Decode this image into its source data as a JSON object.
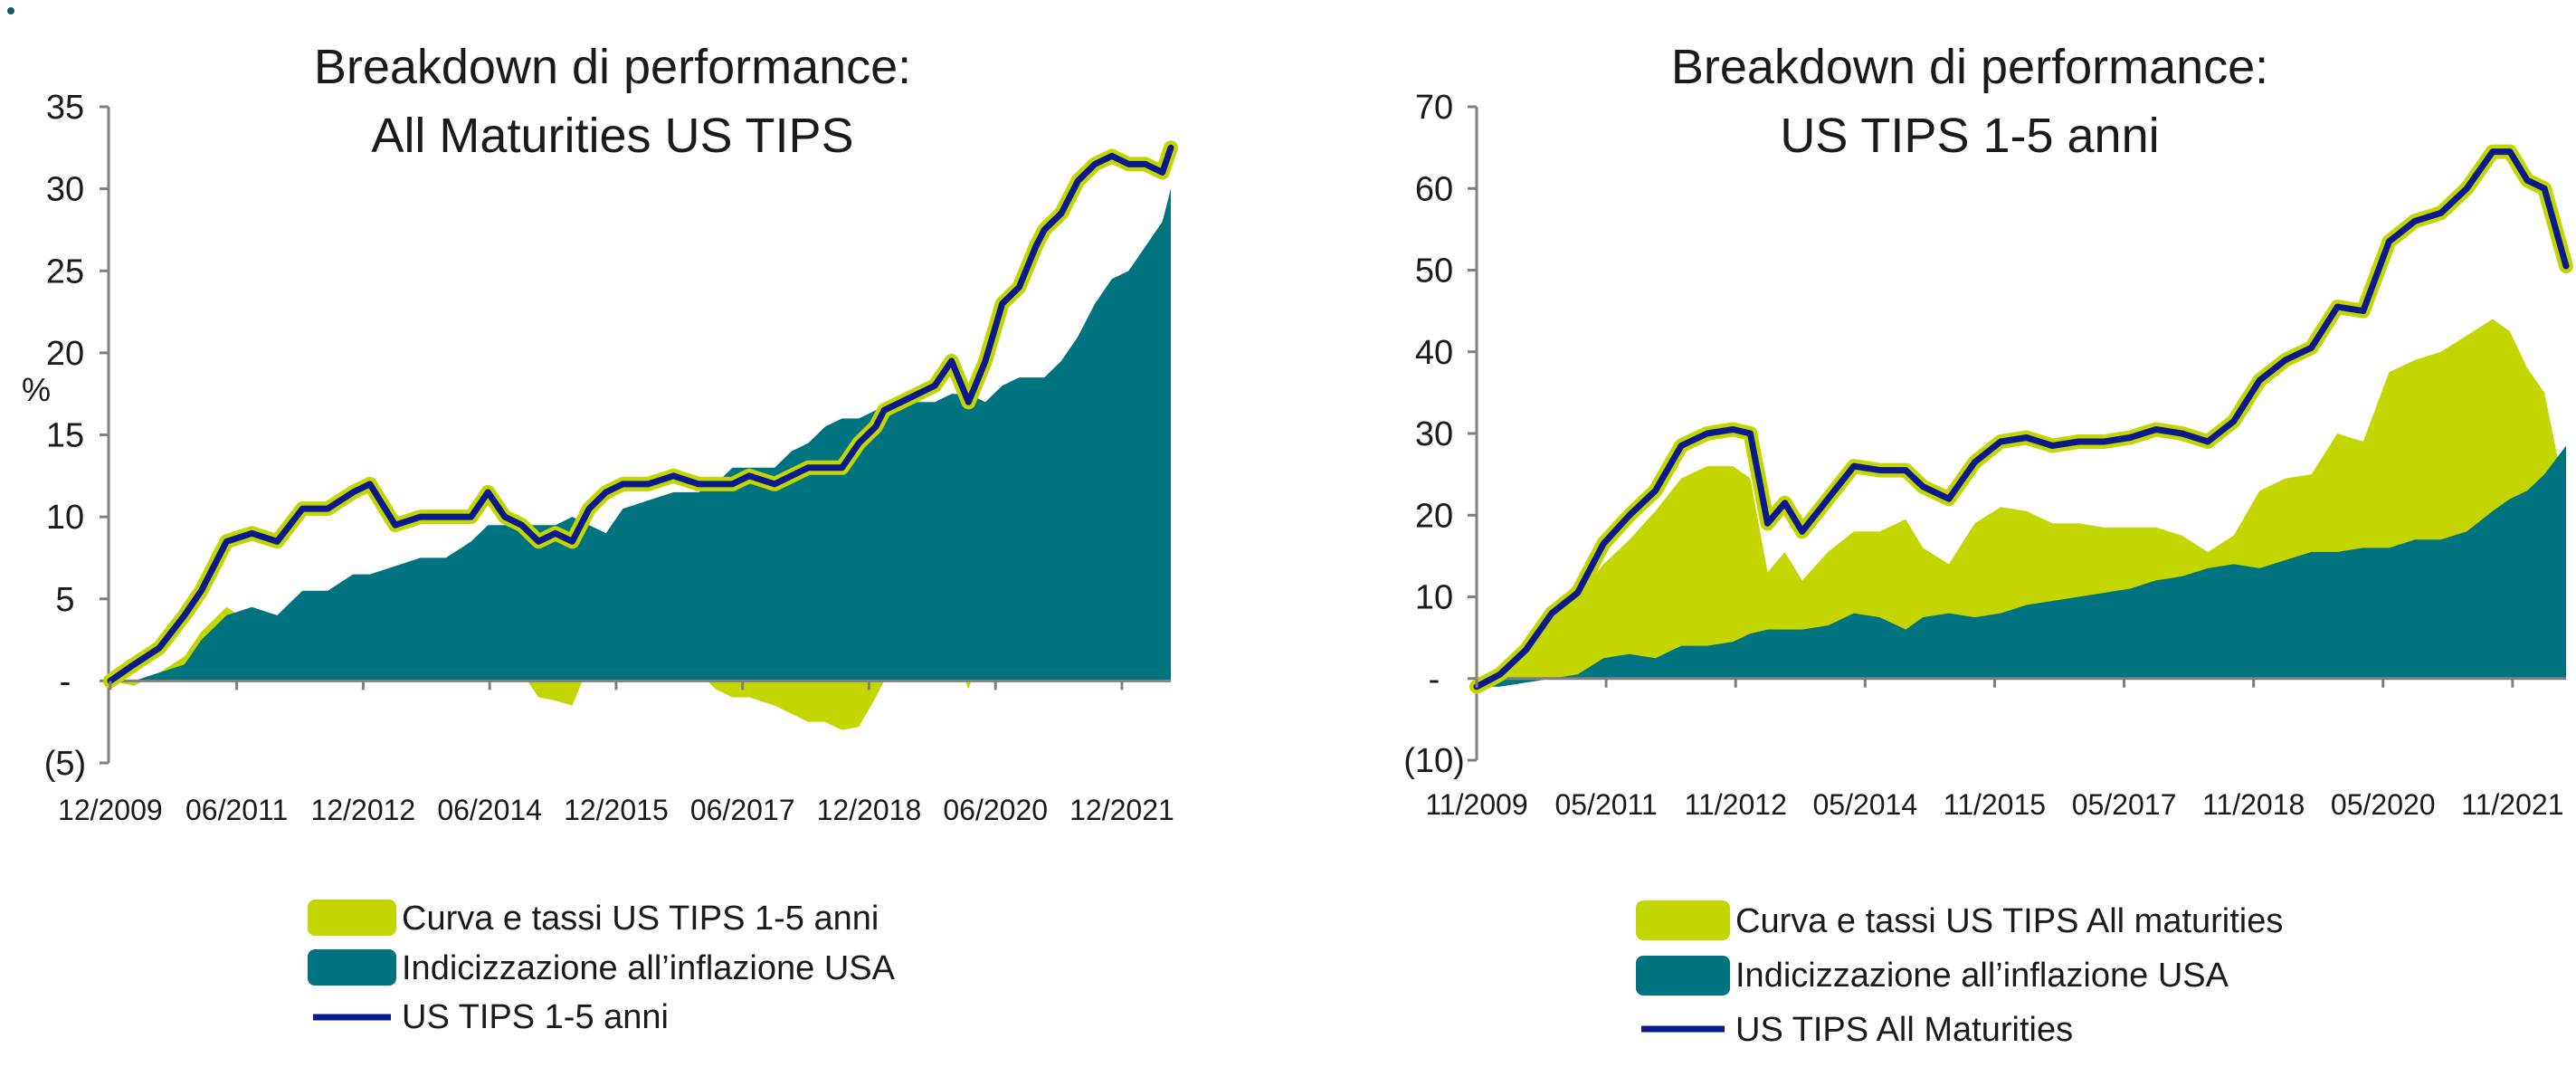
{
  "colors": {
    "yellow_green": "#c4d600",
    "teal": "#007380",
    "navy": "#0a1a8c",
    "axis": "#7f7f7f"
  },
  "chart_data": [
    {
      "type": "area",
      "title": "Breakdown di performance:",
      "subtitle": "All Maturities US TIPS",
      "ylabel": "%",
      "ylim": [
        -5,
        35
      ],
      "yticks": [
        {
          "value": 35,
          "label": "35"
        },
        {
          "value": 30,
          "label": "30"
        },
        {
          "value": 25,
          "label": "25"
        },
        {
          "value": 20,
          "label": "20"
        },
        {
          "value": 15,
          "label": "15"
        },
        {
          "value": 10,
          "label": "10"
        },
        {
          "value": 5,
          "label": "5"
        },
        {
          "value": 0,
          "label": "-"
        },
        {
          "value": -5,
          "label": "(5)"
        }
      ],
      "xrange": [
        2009.9,
        2022.5
      ],
      "xticks": [
        {
          "value": 2009.92,
          "label": "12/2009"
        },
        {
          "value": 2011.42,
          "label": "06/2011"
        },
        {
          "value": 2012.92,
          "label": "12/2012"
        },
        {
          "value": 2014.42,
          "label": "06/2014"
        },
        {
          "value": 2015.92,
          "label": "12/2015"
        },
        {
          "value": 2017.42,
          "label": "06/2017"
        },
        {
          "value": 2018.92,
          "label": "12/2018"
        },
        {
          "value": 2020.42,
          "label": "06/2020"
        },
        {
          "value": 2021.92,
          "label": "12/2021"
        }
      ],
      "legend_position": "bottom",
      "series": [
        {
          "name": "Curva e tassi US TIPS 1-5 anni",
          "kind": "area",
          "color": "#c4d600",
          "x": [
            2009.92,
            2010.2,
            2010.5,
            2010.8,
            2011.0,
            2011.3,
            2011.6,
            2011.9,
            2012.2,
            2012.5,
            2012.8,
            2013.0,
            2013.3,
            2013.6,
            2013.9,
            2014.2,
            2014.4,
            2014.6,
            2014.8,
            2015.0,
            2015.2,
            2015.4,
            2015.6,
            2015.8,
            2016.0,
            2016.3,
            2016.6,
            2016.9,
            2017.1,
            2017.3,
            2017.5,
            2017.8,
            2018.0,
            2018.2,
            2018.4,
            2018.6,
            2018.8,
            2019.0,
            2019.1,
            2019.3,
            2019.5,
            2019.7,
            2019.9,
            2020.1,
            2020.3,
            2020.5,
            2020.7,
            2020.9,
            2021.0,
            2021.2,
            2021.4,
            2021.6,
            2021.8,
            2022.0,
            2022.2,
            2022.4,
            2022.5
          ],
          "values": [
            0,
            -0.3,
            0.5,
            1.5,
            3.0,
            4.5,
            3.5,
            4.0,
            5.0,
            5.0,
            4.5,
            4.5,
            1.0,
            2.5,
            1.5,
            1.5,
            2.0,
            1.5,
            0.5,
            -1.0,
            -1.2,
            -1.5,
            1.0,
            2.0,
            1.5,
            1.0,
            1.0,
            0.5,
            -0.5,
            -1.0,
            -1.0,
            -1.5,
            -2.0,
            -2.5,
            -2.5,
            -3.0,
            -2.8,
            -1.0,
            0.0,
            0.0,
            0.5,
            1.0,
            2.0,
            -0.5,
            2.5,
            6.0,
            6.0,
            8.0,
            9.0,
            9.0,
            9.5,
            9.0,
            8.0,
            6.5,
            5.0,
            3.0,
            3.0
          ]
        },
        {
          "name": "Indicizzazione all’inflazione USA",
          "kind": "area",
          "color": "#007380",
          "x": [
            2009.92,
            2010.2,
            2010.5,
            2010.8,
            2011.0,
            2011.3,
            2011.6,
            2011.9,
            2012.2,
            2012.5,
            2012.8,
            2013.0,
            2013.3,
            2013.6,
            2013.9,
            2014.2,
            2014.4,
            2014.6,
            2014.8,
            2015.0,
            2015.2,
            2015.4,
            2015.6,
            2015.8,
            2016.0,
            2016.3,
            2016.6,
            2016.9,
            2017.1,
            2017.3,
            2017.5,
            2017.8,
            2018.0,
            2018.2,
            2018.4,
            2018.6,
            2018.8,
            2019.0,
            2019.1,
            2019.3,
            2019.5,
            2019.7,
            2019.9,
            2020.1,
            2020.3,
            2020.5,
            2020.7,
            2020.9,
            2021.0,
            2021.2,
            2021.4,
            2021.6,
            2021.8,
            2022.0,
            2022.2,
            2022.4,
            2022.5
          ],
          "values": [
            0,
            0,
            0.5,
            1.0,
            2.5,
            4.0,
            4.5,
            4.0,
            5.5,
            5.5,
            6.5,
            6.5,
            7.0,
            7.5,
            7.5,
            8.5,
            9.5,
            9.5,
            9.5,
            9.5,
            9.5,
            10.0,
            9.5,
            9.0,
            10.5,
            11.0,
            11.5,
            11.5,
            12.0,
            13.0,
            13.0,
            13.0,
            14.0,
            14.5,
            15.5,
            16.0,
            16.0,
            16.5,
            17.0,
            17.0,
            17.0,
            17.0,
            17.5,
            17.5,
            17.0,
            18.0,
            18.5,
            18.5,
            18.5,
            19.5,
            21.0,
            23.0,
            24.5,
            25.0,
            26.5,
            28.0,
            30.0
          ]
        },
        {
          "name": "US TIPS 1-5 anni",
          "kind": "line",
          "color": "#0a1a8c",
          "x": [
            2009.92,
            2010.2,
            2010.5,
            2010.8,
            2011.0,
            2011.3,
            2011.6,
            2011.9,
            2012.2,
            2012.5,
            2012.8,
            2013.0,
            2013.3,
            2013.6,
            2013.9,
            2014.2,
            2014.4,
            2014.6,
            2014.8,
            2015.0,
            2015.2,
            2015.4,
            2015.6,
            2015.8,
            2016.0,
            2016.3,
            2016.6,
            2016.9,
            2017.1,
            2017.3,
            2017.5,
            2017.8,
            2018.0,
            2018.2,
            2018.4,
            2018.6,
            2018.8,
            2019.0,
            2019.1,
            2019.3,
            2019.5,
            2019.7,
            2019.9,
            2020.1,
            2020.3,
            2020.5,
            2020.7,
            2020.9,
            2021.0,
            2021.2,
            2021.4,
            2021.6,
            2021.8,
            2022.0,
            2022.2,
            2022.4,
            2022.5
          ],
          "values": [
            0,
            1.0,
            2.0,
            4.0,
            5.5,
            8.5,
            9.0,
            8.5,
            10.5,
            10.5,
            11.5,
            12.0,
            9.5,
            10.0,
            10.0,
            10.0,
            11.5,
            10.0,
            9.5,
            8.5,
            9.0,
            8.5,
            10.5,
            11.5,
            12.0,
            12.0,
            12.5,
            12.0,
            12.0,
            12.0,
            12.5,
            12.0,
            12.5,
            13.0,
            13.0,
            13.0,
            14.5,
            15.5,
            16.5,
            17.0,
            17.5,
            18.0,
            19.5,
            17.0,
            19.5,
            23.0,
            24.0,
            26.5,
            27.5,
            28.5,
            30.5,
            31.5,
            32.0,
            31.5,
            31.5,
            31.0,
            32.5
          ]
        }
      ]
    },
    {
      "type": "area",
      "title": "Breakdown di performance:",
      "subtitle": "US TIPS 1-5 anni",
      "ylabel": "",
      "ylim": [
        -10,
        70
      ],
      "yticks": [
        {
          "value": 70,
          "label": "70"
        },
        {
          "value": 60,
          "label": "60"
        },
        {
          "value": 50,
          "label": "50"
        },
        {
          "value": 40,
          "label": "40"
        },
        {
          "value": 30,
          "label": "30"
        },
        {
          "value": 20,
          "label": "20"
        },
        {
          "value": 10,
          "label": "10"
        },
        {
          "value": 0,
          "label": "-"
        },
        {
          "value": -10,
          "label": "(10)"
        }
      ],
      "xrange": [
        2009.83,
        2022.45
      ],
      "xticks": [
        {
          "value": 2009.83,
          "label": "11/2009"
        },
        {
          "value": 2011.33,
          "label": "05/2011"
        },
        {
          "value": 2012.83,
          "label": "11/2012"
        },
        {
          "value": 2014.33,
          "label": "05/2014"
        },
        {
          "value": 2015.83,
          "label": "11/2015"
        },
        {
          "value": 2017.33,
          "label": "05/2017"
        },
        {
          "value": 2018.83,
          "label": "11/2018"
        },
        {
          "value": 2020.33,
          "label": "05/2020"
        },
        {
          "value": 2021.83,
          "label": "11/2021"
        }
      ],
      "legend_position": "bottom",
      "series": [
        {
          "name": "Curva e tassi US TIPS All maturities",
          "kind": "area",
          "color": "#c4d600",
          "x": [
            2009.83,
            2010.1,
            2010.4,
            2010.7,
            2011.0,
            2011.3,
            2011.6,
            2011.9,
            2012.2,
            2012.5,
            2012.8,
            2013.0,
            2013.2,
            2013.4,
            2013.6,
            2013.9,
            2014.2,
            2014.5,
            2014.8,
            2015.0,
            2015.3,
            2015.6,
            2015.9,
            2016.2,
            2016.5,
            2016.8,
            2017.1,
            2017.4,
            2017.7,
            2018.0,
            2018.3,
            2018.6,
            2018.9,
            2019.2,
            2019.5,
            2019.8,
            2020.1,
            2020.4,
            2020.7,
            2021.0,
            2021.3,
            2021.6,
            2021.8,
            2022.0,
            2022.2,
            2022.45
          ],
          "values": [
            0,
            1.5,
            4.0,
            8.0,
            10.0,
            14.0,
            17.0,
            20.5,
            24.5,
            26.0,
            26.0,
            24.5,
            13.0,
            15.5,
            12.0,
            15.5,
            18.0,
            18.0,
            19.5,
            16.0,
            14.0,
            19.0,
            21.0,
            20.5,
            19.0,
            19.0,
            18.5,
            18.5,
            18.5,
            17.5,
            15.5,
            17.5,
            23.0,
            24.5,
            25.0,
            30.0,
            29.0,
            37.5,
            39.0,
            40.0,
            42.0,
            44.0,
            42.5,
            38.0,
            35.0,
            22.0
          ]
        },
        {
          "name": "Indicizzazione all’inflazione USA",
          "kind": "area",
          "color": "#007380",
          "x": [
            2009.83,
            2010.1,
            2010.4,
            2010.7,
            2011.0,
            2011.3,
            2011.6,
            2011.9,
            2012.2,
            2012.5,
            2012.8,
            2013.0,
            2013.2,
            2013.4,
            2013.6,
            2013.9,
            2014.2,
            2014.5,
            2014.8,
            2015.0,
            2015.3,
            2015.6,
            2015.9,
            2016.2,
            2016.5,
            2016.8,
            2017.1,
            2017.4,
            2017.7,
            2018.0,
            2018.3,
            2018.6,
            2018.9,
            2019.2,
            2019.5,
            2019.8,
            2020.1,
            2020.4,
            2020.7,
            2021.0,
            2021.3,
            2021.6,
            2021.8,
            2022.0,
            2022.2,
            2022.45
          ],
          "values": [
            -1.0,
            -1.0,
            -0.5,
            0,
            0.5,
            2.5,
            3.0,
            2.5,
            4.0,
            4.0,
            4.5,
            5.5,
            6.0,
            6.0,
            6.0,
            6.5,
            8.0,
            7.5,
            6.0,
            7.5,
            8.0,
            7.5,
            8.0,
            9.0,
            9.5,
            10.0,
            10.5,
            11.0,
            12.0,
            12.5,
            13.5,
            14.0,
            13.5,
            14.5,
            15.5,
            15.5,
            16.0,
            16.0,
            17.0,
            17.0,
            18.0,
            20.5,
            22.0,
            23.0,
            25.0,
            28.5
          ]
        },
        {
          "name": "US TIPS All Maturities",
          "kind": "line",
          "color": "#0a1a8c",
          "x": [
            2009.83,
            2010.1,
            2010.4,
            2010.7,
            2011.0,
            2011.3,
            2011.6,
            2011.9,
            2012.2,
            2012.5,
            2012.8,
            2013.0,
            2013.2,
            2013.4,
            2013.6,
            2013.9,
            2014.2,
            2014.5,
            2014.8,
            2015.0,
            2015.3,
            2015.6,
            2015.9,
            2016.2,
            2016.5,
            2016.8,
            2017.1,
            2017.4,
            2017.7,
            2018.0,
            2018.3,
            2018.6,
            2018.9,
            2019.2,
            2019.5,
            2019.8,
            2020.1,
            2020.4,
            2020.7,
            2021.0,
            2021.3,
            2021.6,
            2021.8,
            2022.0,
            2022.2,
            2022.45
          ],
          "values": [
            -1.0,
            0.5,
            3.5,
            8.0,
            10.5,
            16.5,
            20.0,
            23.0,
            28.5,
            30.0,
            30.5,
            30.0,
            19.0,
            21.5,
            18.0,
            22.0,
            26.0,
            25.5,
            25.5,
            23.5,
            22.0,
            26.5,
            29.0,
            29.5,
            28.5,
            29.0,
            29.0,
            29.5,
            30.5,
            30.0,
            29.0,
            31.5,
            36.5,
            39.0,
            40.5,
            45.5,
            45.0,
            53.5,
            56.0,
            57.0,
            60.0,
            64.5,
            64.5,
            61.0,
            60.0,
            50.5
          ]
        }
      ]
    }
  ]
}
